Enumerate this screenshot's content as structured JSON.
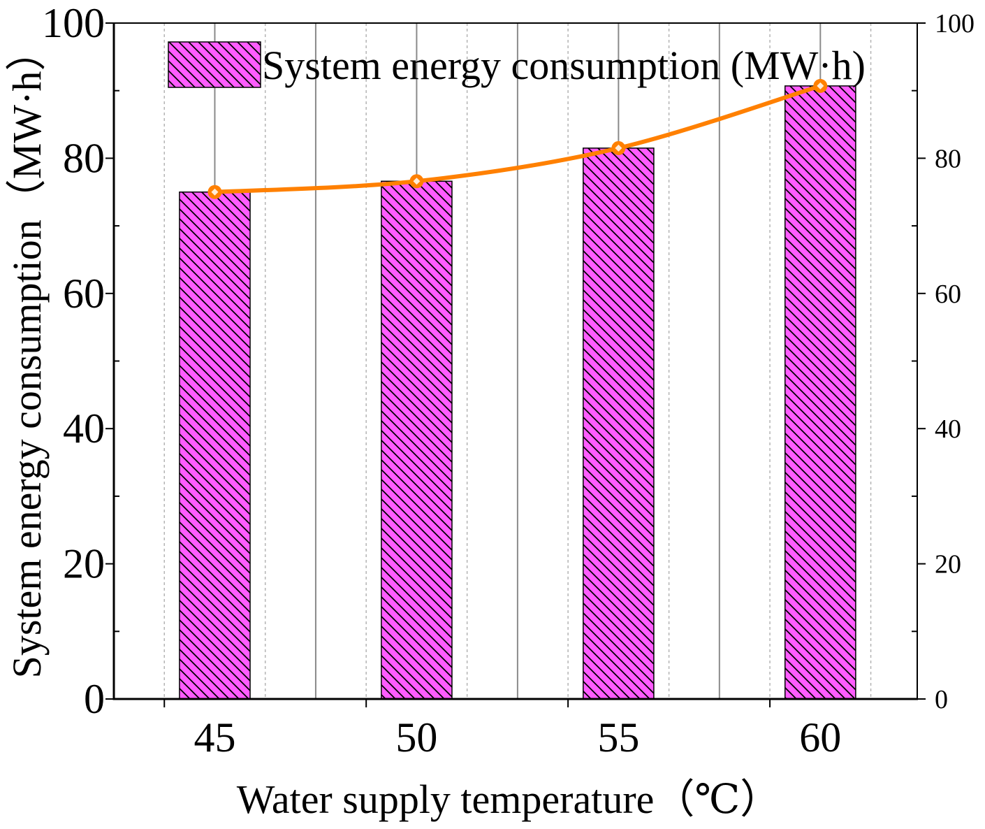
{
  "chart_data": {
    "type": "bar",
    "categories": [
      "45",
      "50",
      "55",
      "60"
    ],
    "x": [
      45,
      50,
      55,
      60
    ],
    "series": [
      {
        "name": "System energy consumption (MW·h)",
        "type": "bar",
        "values": [
          75.0,
          76.6,
          81.5,
          90.7
        ],
        "color": "#ff5cff",
        "hatch_color": "#000000",
        "pattern": "diagonal-hatch"
      },
      {
        "type": "line",
        "values": [
          75.0,
          76.6,
          81.5,
          90.7
        ],
        "color": "#ff8000",
        "marker": "circle",
        "smooth": true
      }
    ],
    "xlabel": "Water supply temperature（℃）",
    "ylabel": "System energy consumption（MW·h）",
    "xlim": [
      42.5,
      62.4
    ],
    "ylim": [
      0,
      100
    ],
    "y2lim": [
      0,
      100
    ],
    "yticks": [
      0,
      20,
      40,
      60,
      80,
      100
    ],
    "y2ticks": [
      0,
      20,
      40,
      60,
      80,
      100
    ],
    "grid": {
      "x": true,
      "y": false
    },
    "legend": {
      "position": "top-left"
    }
  }
}
